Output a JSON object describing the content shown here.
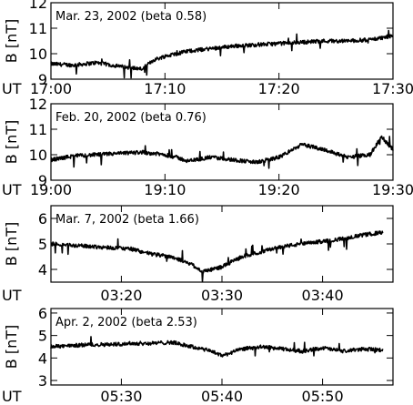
{
  "chart_data": [
    {
      "type": "line",
      "title": "Mar. 23, 2002 (beta 0.58)",
      "ylabel": "B [nT]",
      "xlabel": "UT",
      "ylim": [
        9,
        12
      ],
      "yticks": [
        "9",
        "10",
        "11",
        "12"
      ],
      "xticks": [
        "17:00",
        "17:10",
        "17:20",
        "17:30"
      ],
      "series": [
        {
          "x": [
            "17:00",
            "17:02",
            "17:04",
            "17:06",
            "17:08",
            "17:09",
            "17:10",
            "17:11",
            "17:12",
            "17:14",
            "17:16",
            "17:18",
            "17:20",
            "17:22",
            "17:24",
            "17:26",
            "17:28",
            "17:30"
          ],
          "values": [
            9.6,
            9.55,
            9.65,
            9.5,
            9.4,
            9.75,
            9.9,
            10.0,
            10.1,
            10.2,
            10.3,
            10.35,
            10.4,
            10.45,
            10.5,
            10.5,
            10.55,
            10.7
          ]
        }
      ]
    },
    {
      "type": "line",
      "title": "Feb. 20, 2002 (beta 0.76)",
      "ylabel": "B [nT]",
      "xlabel": "UT",
      "ylim": [
        9,
        12
      ],
      "yticks": [
        "9",
        "10",
        "11",
        "12"
      ],
      "xticks": [
        "19:00",
        "19:10",
        "19:20",
        "19:30"
      ],
      "series": [
        {
          "x": [
            "19:00",
            "19:02",
            "19:04",
            "19:06",
            "19:08",
            "19:10",
            "19:11",
            "19:12",
            "19:14",
            "19:16",
            "19:18",
            "19:20",
            "19:22",
            "19:24",
            "19:26",
            "19:28",
            "19:29",
            "19:30"
          ],
          "values": [
            9.8,
            9.95,
            10.0,
            10.05,
            10.1,
            10.0,
            9.9,
            9.75,
            9.9,
            9.8,
            9.7,
            9.9,
            10.4,
            10.2,
            9.9,
            10.0,
            10.7,
            10.2
          ]
        }
      ]
    },
    {
      "type": "line",
      "title": "Mar. 7, 2002 (beta 1.66)",
      "ylabel": "B [nT]",
      "xlabel": "UT",
      "ylim": [
        3.5,
        6.5
      ],
      "yticks": [
        "4",
        "5",
        "6"
      ],
      "xticks": [
        "03:20",
        "03:30",
        "03:40"
      ],
      "series": [
        {
          "x": [
            "03:13",
            "03:15",
            "03:17",
            "03:19",
            "03:21",
            "03:23",
            "03:25",
            "03:27",
            "03:28",
            "03:30",
            "03:32",
            "03:34",
            "03:36",
            "03:38",
            "03:40",
            "03:42",
            "03:44",
            "03:46"
          ],
          "values": [
            5.0,
            4.95,
            4.9,
            4.85,
            4.8,
            4.6,
            4.5,
            4.2,
            3.9,
            4.1,
            4.5,
            4.7,
            4.9,
            5.0,
            5.1,
            5.2,
            5.35,
            5.45
          ]
        }
      ]
    },
    {
      "type": "line",
      "title": "Apr. 2, 2002 (beta 2.53)",
      "ylabel": "B [nT]",
      "xlabel": "UT",
      "ylim": [
        2.8,
        6.2
      ],
      "yticks": [
        "3",
        "4",
        "5",
        "6"
      ],
      "xticks": [
        "05:30",
        "05:40",
        "05:50"
      ],
      "series": [
        {
          "x": [
            "05:23",
            "05:25",
            "05:27",
            "05:29",
            "05:31",
            "05:33",
            "05:35",
            "05:37",
            "05:39",
            "05:40",
            "05:42",
            "05:44",
            "05:46",
            "05:48",
            "05:50",
            "05:52",
            "05:54",
            "05:56"
          ],
          "values": [
            4.5,
            4.55,
            4.6,
            4.6,
            4.65,
            4.65,
            4.7,
            4.5,
            4.3,
            4.1,
            4.4,
            4.5,
            4.4,
            4.3,
            4.45,
            4.3,
            4.4,
            4.35
          ]
        }
      ]
    }
  ]
}
